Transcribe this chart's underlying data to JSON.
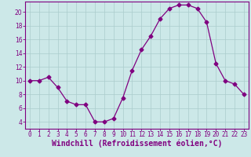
{
  "x": [
    0,
    1,
    2,
    3,
    4,
    5,
    6,
    7,
    8,
    9,
    10,
    11,
    12,
    13,
    14,
    15,
    16,
    17,
    18,
    19,
    20,
    21,
    22,
    23
  ],
  "y": [
    10,
    10,
    10.5,
    9,
    7,
    6.5,
    6.5,
    4,
    4,
    4.5,
    7.5,
    11.5,
    14.5,
    16.5,
    19,
    20.5,
    21,
    21,
    20.5,
    18.5,
    12.5,
    10,
    9.5,
    8
  ],
  "line_color": "#800080",
  "marker": "D",
  "marker_size": 2.5,
  "bg_color": "#cce8e8",
  "grid_color": "#aacccc",
  "xlabel": "Windchill (Refroidissement éolien,°C)",
  "xlabel_color": "#800080",
  "xlim": [
    -0.5,
    23.5
  ],
  "ylim": [
    3,
    21.5
  ],
  "yticks": [
    4,
    6,
    8,
    10,
    12,
    14,
    16,
    18,
    20
  ],
  "xticks": [
    0,
    1,
    2,
    3,
    4,
    5,
    6,
    7,
    8,
    9,
    10,
    11,
    12,
    13,
    14,
    15,
    16,
    17,
    18,
    19,
    20,
    21,
    22,
    23
  ],
  "tick_color": "#800080",
  "tick_label_fontsize": 5.5,
  "xlabel_fontsize": 7.0,
  "spine_color": "#800080"
}
